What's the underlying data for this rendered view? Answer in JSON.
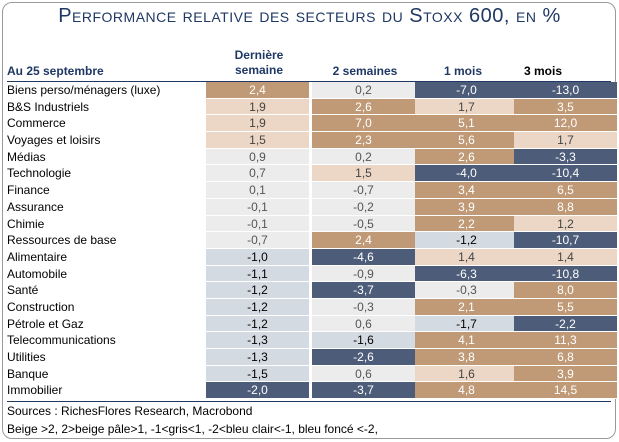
{
  "chart_data": {
    "type": "table",
    "title": "Performance relative des secteurs du Stoxx 600, en %",
    "row_header": "Au 25 septembre",
    "columns": [
      "Dernière semaine",
      "2 semaines",
      "1 mois",
      "3 mois"
    ],
    "rows": [
      {
        "label": "Biens perso/ménagers (luxe)",
        "values": [
          "2,4",
          "0,2",
          "-7,0",
          "-13,0"
        ]
      },
      {
        "label": "B&S Industriels",
        "values": [
          "1,9",
          "2,6",
          "1,7",
          "3,5"
        ]
      },
      {
        "label": "Commerce",
        "values": [
          "1,9",
          "7,0",
          "5,1",
          "12,0"
        ]
      },
      {
        "label": "Voyages et loisirs",
        "values": [
          "1,5",
          "2,3",
          "5,6",
          "1,7"
        ]
      },
      {
        "label": "Médias",
        "values": [
          "0,9",
          "0,2",
          "2,6",
          "-3,3"
        ]
      },
      {
        "label": "Technologie",
        "values": [
          "0,7",
          "1,5",
          "-4,0",
          "-10,4"
        ]
      },
      {
        "label": "Finance",
        "values": [
          "0,1",
          "-0,7",
          "3,4",
          "6,5"
        ]
      },
      {
        "label": "Assurance",
        "values": [
          "-0,1",
          "-0,2",
          "3,9",
          "8,8"
        ]
      },
      {
        "label": "Chimie",
        "values": [
          "-0,1",
          "-0,5",
          "2,2",
          "1,2"
        ]
      },
      {
        "label": "Ressources de base",
        "values": [
          "-0,7",
          "2,4",
          "-1,2",
          "-10,7"
        ]
      },
      {
        "label": "Alimentaire",
        "values": [
          "-1,0",
          "-4,6",
          "1,4",
          "1,4"
        ]
      },
      {
        "label": "Automobile",
        "values": [
          "-1,1",
          "-0,9",
          "-6,3",
          "-10,8"
        ]
      },
      {
        "label": "Santé",
        "values": [
          "-1,2",
          "-3,7",
          "-0,3",
          "8,0"
        ]
      },
      {
        "label": "Construction",
        "values": [
          "-1,2",
          "-0,3",
          "2,1",
          "5,5"
        ]
      },
      {
        "label": "Pétrole et Gaz",
        "values": [
          "-1,2",
          "0,6",
          "-1,7",
          "-2,2"
        ]
      },
      {
        "label": "Telecommunications",
        "values": [
          "-1,3",
          "-1,6",
          "4,1",
          "11,3"
        ]
      },
      {
        "label": "Utilities",
        "values": [
          "-1,3",
          "-2,6",
          "3,8",
          "6,8"
        ]
      },
      {
        "label": "Banque",
        "values": [
          "-1,5",
          "0,6",
          "1,6",
          "3,9"
        ]
      },
      {
        "label": "Immobilier",
        "values": [
          "-2,0",
          "-3,7",
          "4,8",
          "14,5"
        ]
      }
    ],
    "colors": {
      "beige": "#c09a76",
      "pale_beige": "#ecd7c6",
      "grey": "#ececec",
      "light_blue": "#d4dae2",
      "dark_blue": "#4d5d79"
    }
  },
  "source": "Sources : RichesFlores Research, Macrobond",
  "legend_note": "Beige >2, 2>beige pâle>1, -1<gris<1, -2<bleu clair<-1, bleu foncé <-2,"
}
